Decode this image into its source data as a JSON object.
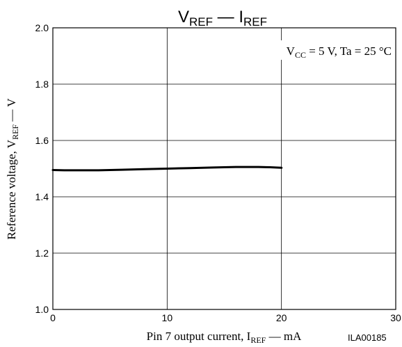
{
  "chart_data": {
    "type": "line",
    "title": {
      "main": "V",
      "sub1": "REF",
      "sep": " — ",
      "main2": "I",
      "sub2": "REF"
    },
    "xlabel": {
      "pre": "Pin 7 output current, I",
      "sub": "REF",
      "post": " — mA"
    },
    "ylabel": {
      "pre": "Reference voltage, V",
      "sub": "REF",
      "post": " — V"
    },
    "annotation": {
      "pre1": "V",
      "sub": "CC",
      "post": " = 5 V, Ta = 25 °C"
    },
    "code": "ILA00185",
    "xlim": [
      0,
      30
    ],
    "ylim": [
      1.0,
      2.0
    ],
    "xticks": [
      0,
      10,
      20,
      30
    ],
    "xtick_labels": [
      "0",
      "10",
      "20",
      "30"
    ],
    "yticks": [
      1.0,
      1.2,
      1.4,
      1.6,
      1.8,
      2.0
    ],
    "ytick_labels": [
      "1.0",
      "1.2",
      "1.4",
      "1.6",
      "1.8",
      "2.0"
    ],
    "grid": true,
    "series": [
      {
        "x": [
          0,
          1,
          2,
          4,
          6,
          8,
          10,
          12,
          14,
          16,
          18,
          19,
          20
        ],
        "y": [
          1.495,
          1.494,
          1.494,
          1.494,
          1.496,
          1.498,
          1.5,
          1.502,
          1.504,
          1.506,
          1.506,
          1.505,
          1.503
        ],
        "color": "#000000"
      }
    ]
  }
}
